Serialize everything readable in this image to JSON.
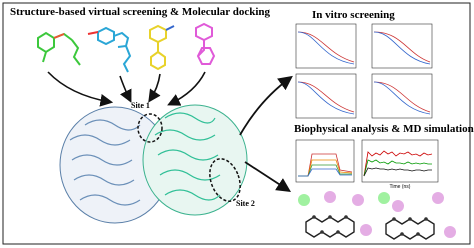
{
  "header": {
    "left_title": "Structure-based virtual screening & Molecular docking",
    "right_title_top": "In vitro screening",
    "right_title_bottom": "Biophysical analysis & MD simulation"
  },
  "labels": {
    "site1": "Site 1",
    "site2": "Site 2",
    "md_x_axis": "Time (ns)"
  }
}
